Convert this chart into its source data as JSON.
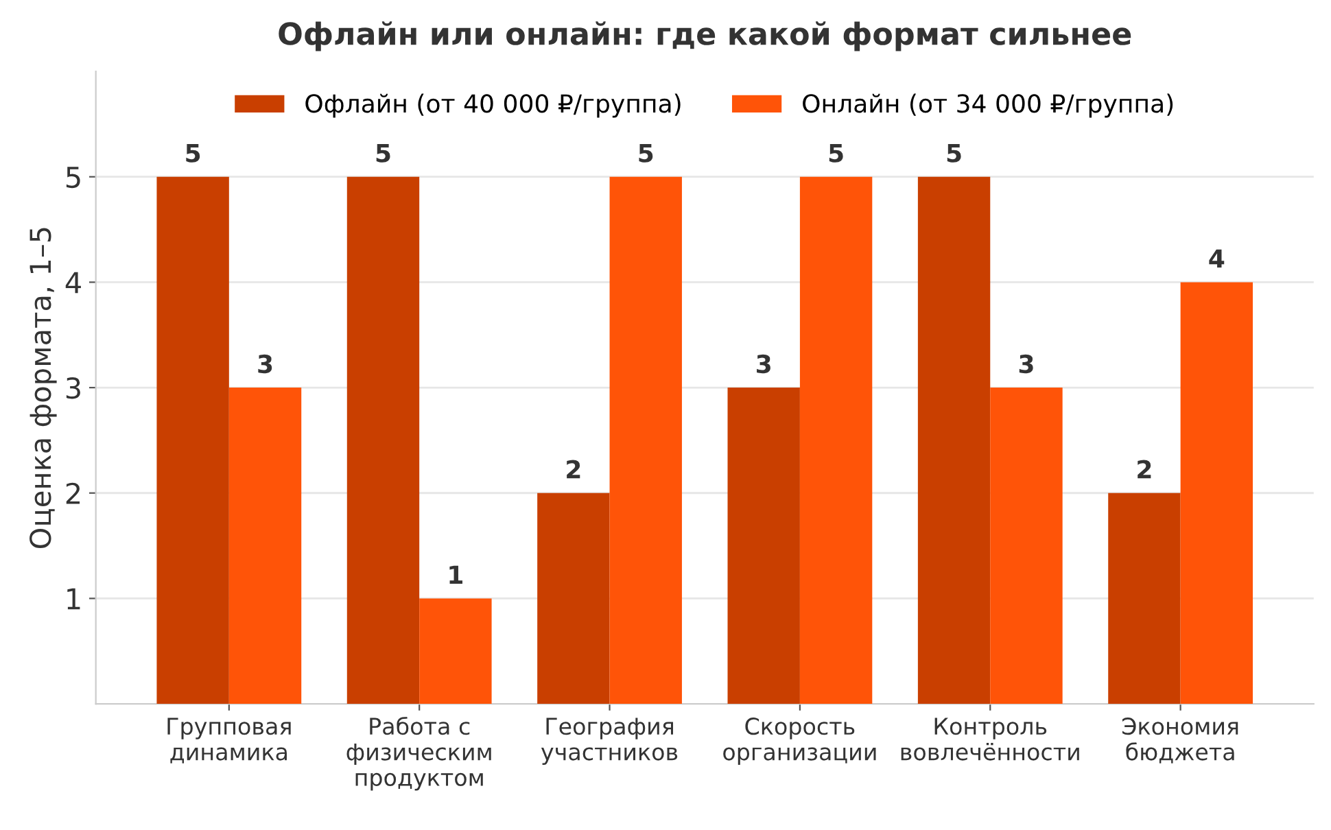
{
  "chart_data": {
    "type": "bar",
    "title": "Офлайн или онлайн: где какой формат сильнее",
    "ylabel": "Оценка формата, 1–5",
    "categories": [
      "Групповая\nдинамика",
      "Работа с\nфизическим\nпродуктом",
      "География\nучастников",
      "Скорость\nорганизации",
      "Контроль\nвовлечённости",
      "Экономия\nбюджета"
    ],
    "series": [
      {
        "name": "Офлайн (от 40 000 ₽/группа)",
        "color": "#c93f00",
        "values": [
          5,
          5,
          2,
          3,
          5,
          2
        ]
      },
      {
        "name": "Онлайн (от 34 000 ₽/группа)",
        "color": "#ff5408",
        "values": [
          3,
          1,
          5,
          5,
          3,
          4
        ]
      }
    ],
    "ylim": [
      0,
      6
    ],
    "yticks": [
      1,
      2,
      3,
      4,
      5
    ],
    "grid": "y",
    "legend": "top",
    "data_labels": true
  }
}
